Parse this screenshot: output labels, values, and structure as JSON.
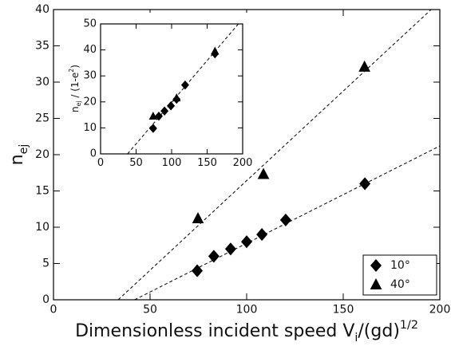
{
  "chart_data": [
    {
      "type": "scatter",
      "xlabel": [
        "Dimensionless incident speed V",
        "i",
        "/(gd)",
        "1/2"
      ],
      "ylabel": [
        "n",
        "ej"
      ],
      "xlim": [
        0,
        200
      ],
      "xticks": [
        0,
        50,
        100,
        150,
        200
      ],
      "ylim": [
        0,
        40
      ],
      "yticks": [
        0,
        5,
        10,
        15,
        20,
        25,
        30,
        35,
        40
      ],
      "legend": "lower right",
      "series": [
        {
          "name": "10°",
          "color": "#000000",
          "marker": "diamond",
          "x": [
            74.4,
            83,
            91.7,
            100,
            107.9,
            120.2,
            161.2
          ],
          "values": [
            4,
            6,
            7,
            8,
            9,
            11,
            16
          ],
          "fit": {
            "x": [
              42,
              200
            ],
            "values": [
              0,
              21.2
            ]
          }
        },
        {
          "name": "40°",
          "color": "#000000",
          "marker": "triangle",
          "x": [
            74.8,
            108.7,
            161
          ],
          "values": [
            11.2,
            17.3,
            32.1
          ],
          "fit": {
            "x": [
              33.5,
              195.5
            ],
            "values": [
              0,
              40
            ]
          }
        }
      ]
    },
    {
      "type": "scatter",
      "ylabel": [
        "n",
        "ej",
        " / (1-e",
        "2",
        ")"
      ],
      "xlim": [
        0,
        200
      ],
      "xticks": [
        0,
        50,
        100,
        150,
        200
      ],
      "ylim": [
        0,
        50
      ],
      "yticks": [
        0,
        10,
        20,
        30,
        40,
        50
      ],
      "series": [
        {
          "color": "#000000",
          "marker": "diamond",
          "x": [
            74,
            82,
            90,
            99,
            107,
            119,
            161
          ],
          "values": [
            9.8,
            14.5,
            16.5,
            18.5,
            21,
            26.5,
            38.5
          ]
        },
        {
          "color": "#000000",
          "marker": "triangle",
          "x": [
            74,
            107,
            161
          ],
          "values": [
            14.5,
            21.5,
            39.5
          ],
          "fit": {
            "x": [
              38,
              194
            ],
            "values": [
              0,
              50
            ]
          }
        }
      ]
    }
  ]
}
